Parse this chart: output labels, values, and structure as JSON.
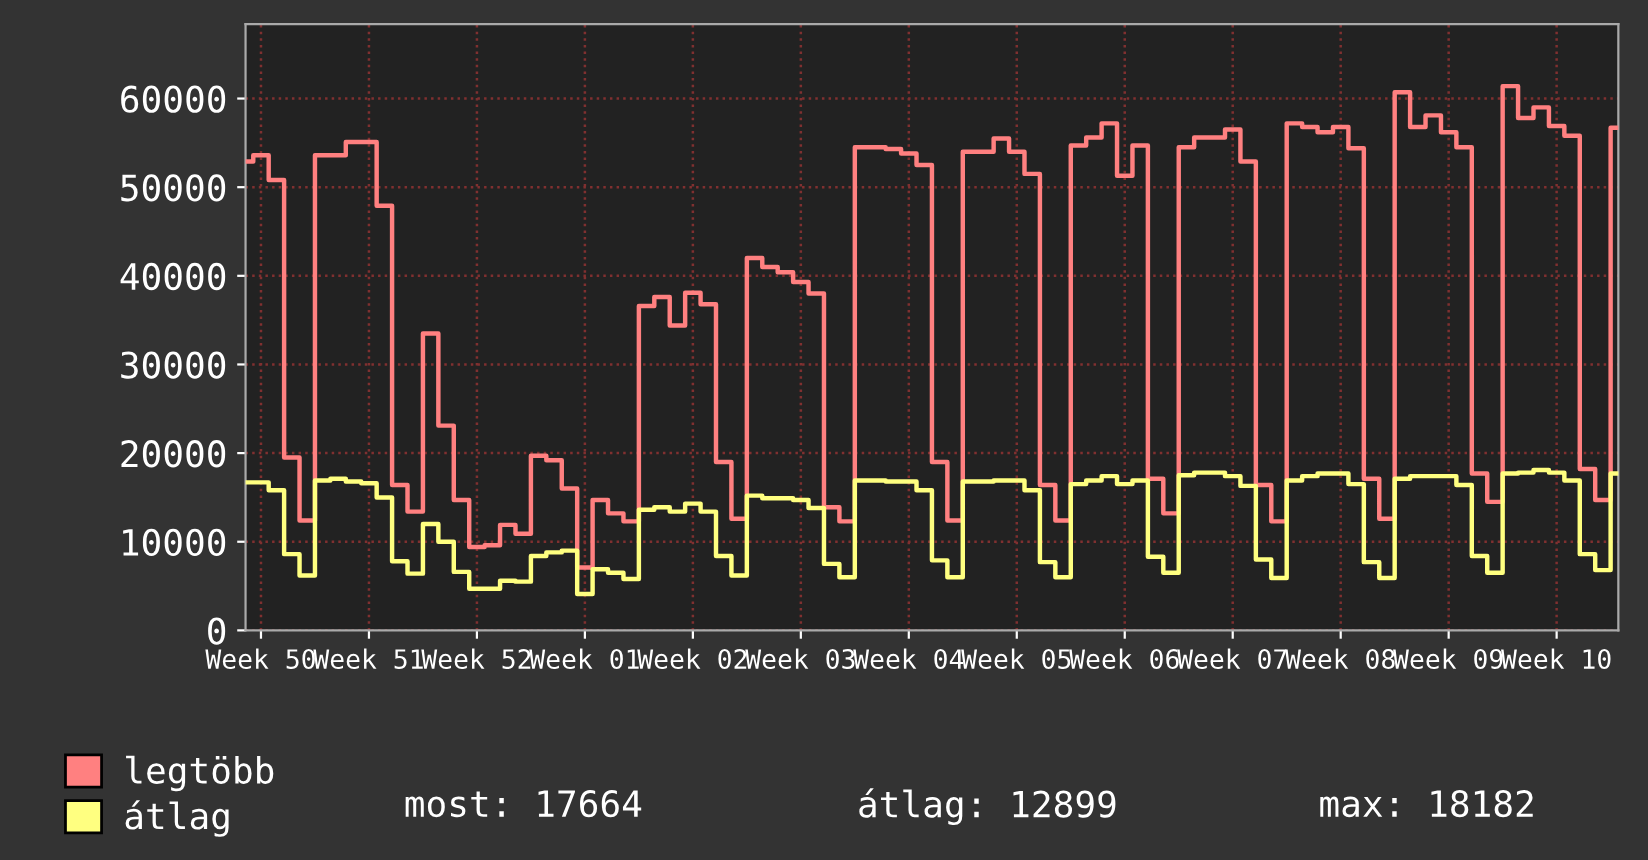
{
  "chart_data": {
    "type": "step",
    "categories": [
      null,
      "Week 50",
      null,
      null,
      null,
      null,
      null,
      null,
      "Week 51",
      null,
      null,
      null,
      null,
      null,
      null,
      "Week 52",
      null,
      null,
      null,
      null,
      null,
      null,
      "Week 01",
      null,
      null,
      null,
      null,
      null,
      null,
      "Week 02",
      null,
      null,
      null,
      null,
      null,
      null,
      "Week 03",
      null,
      null,
      null,
      null,
      null,
      null,
      "Week 04",
      null,
      null,
      null,
      null,
      null,
      null,
      "Week 05",
      null,
      null,
      null,
      null,
      null,
      null,
      "Week 06",
      null,
      null,
      null,
      null,
      null,
      null,
      "Week 07",
      null,
      null,
      null,
      null,
      null,
      null,
      "Week 08",
      null,
      null,
      null,
      null,
      null,
      null,
      "Week 09",
      null,
      null,
      null,
      null,
      null,
      null,
      "Week 10",
      null,
      null,
      null,
      null
    ],
    "series": [
      {
        "name": "legtöbb",
        "color": "#ff8080",
        "values": [
          52900,
          53600,
          50800,
          19500,
          12400,
          53600,
          53600,
          55100,
          55100,
          47900,
          16400,
          13400,
          33500,
          23100,
          14700,
          9400,
          9600,
          11900,
          10900,
          19700,
          19200,
          16000,
          7100,
          14700,
          13200,
          12300,
          36600,
          37600,
          34400,
          38100,
          36800,
          19000,
          12600,
          42000,
          41000,
          40400,
          39300,
          38000,
          13900,
          12300,
          54500,
          54500,
          54300,
          53800,
          52500,
          19000,
          12400,
          54000,
          54000,
          55500,
          54000,
          51500,
          16400,
          12400,
          54700,
          55600,
          57200,
          51300,
          54700,
          17100,
          13200,
          54500,
          55600,
          55600,
          56500,
          52900,
          16400,
          12300,
          57200,
          56800,
          56200,
          56800,
          54400,
          17100,
          12600,
          60700,
          56800,
          58100,
          56200,
          54500,
          17700,
          14500,
          61400,
          57800,
          59000,
          56900,
          55800,
          18200,
          14700,
          56700
        ]
      },
      {
        "name": "átlag",
        "color": "#ffff80",
        "values": [
          16700,
          16700,
          15800,
          8600,
          6200,
          16900,
          17100,
          16800,
          16600,
          15000,
          7800,
          6400,
          12000,
          10000,
          6600,
          4700,
          4700,
          5600,
          5500,
          8400,
          8800,
          9000,
          4100,
          6900,
          6500,
          5800,
          13600,
          13900,
          13400,
          14300,
          13400,
          8400,
          6200,
          15200,
          14900,
          14900,
          14700,
          13800,
          7500,
          6000,
          16900,
          16900,
          16800,
          16800,
          15800,
          7900,
          6000,
          16800,
          16800,
          16900,
          16900,
          15800,
          7700,
          6000,
          16500,
          16900,
          17400,
          16500,
          16900,
          8300,
          6500,
          17500,
          17800,
          17800,
          17400,
          16300,
          8000,
          5900,
          16900,
          17400,
          17700,
          17700,
          16500,
          7700,
          5900,
          17100,
          17400,
          17400,
          17400,
          16400,
          8400,
          6500,
          17700,
          17800,
          18100,
          17800,
          16900,
          8600,
          6800,
          17700
        ]
      }
    ],
    "ylim": [
      0,
      68400
    ],
    "yticks": [
      0,
      10000,
      20000,
      30000,
      40000,
      50000,
      60000
    ],
    "grid": true,
    "legend": "bottom left",
    "annotations": [
      "most: 17664",
      "átlag: 12899",
      "max: 18182"
    ]
  }
}
